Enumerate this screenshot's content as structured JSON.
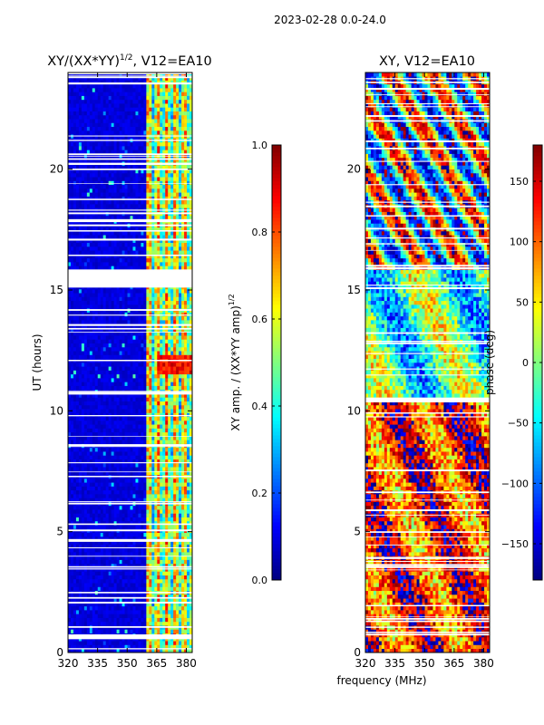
{
  "figure_title": "2023-02-28 0.0-24.0",
  "shared_xlabel": "frequency (MHz)",
  "chart_data": [
    {
      "type": "heatmap",
      "title": "XY/(XX*YY)",
      "title_exponent": "1/2",
      "title_suffix": ", V12=EA10",
      "xlabel": "",
      "ylabel": "UT (hours)",
      "xlim": [
        320,
        383
      ],
      "ylim": [
        0,
        24
      ],
      "xticks": [
        320,
        335,
        350,
        365,
        380
      ],
      "yticks": [
        0,
        5,
        10,
        15,
        20
      ],
      "colormap": "jet",
      "colorbar": {
        "label": "XY amp. / (XX*YY amp)",
        "label_exponent": "1/2",
        "range": [
          0.0,
          1.0
        ],
        "ticks": [
          "0.0",
          "0.2",
          "0.4",
          "0.6",
          "0.8",
          "1.0"
        ],
        "tick_values": [
          0.0,
          0.2,
          0.4,
          0.6,
          0.8,
          1.0
        ]
      },
      "active_band_mhz": [
        360,
        383
      ],
      "quiet_level": 0.06,
      "active_level": 0.55,
      "data_gaps_hours": [
        [
          0.55,
          0.75
        ],
        [
          15.1,
          15.85
        ]
      ]
    },
    {
      "type": "heatmap",
      "title": "XY, V12=EA10",
      "xlabel": "frequency (MHz)",
      "ylabel": "",
      "xlim": [
        320,
        383
      ],
      "ylim": [
        0,
        24
      ],
      "xticks": [
        320,
        335,
        350,
        365,
        380
      ],
      "yticks": [
        0,
        5,
        10,
        15,
        20
      ],
      "colormap": "jet",
      "colorbar": {
        "label": "phase (deg)",
        "range": [
          -180,
          180
        ],
        "ticks": [
          "150",
          "100",
          "50",
          "0",
          "−50",
          "−100",
          "−150"
        ],
        "tick_values": [
          150,
          100,
          50,
          0,
          -50,
          -100,
          -150
        ]
      },
      "data_gaps_hours": [
        [
          15.85,
          15.95
        ],
        [
          10.35,
          10.55
        ]
      ]
    }
  ],
  "colors": {
    "axis": "#000000",
    "background": "#ffffff",
    "gap": "#ffffff"
  }
}
